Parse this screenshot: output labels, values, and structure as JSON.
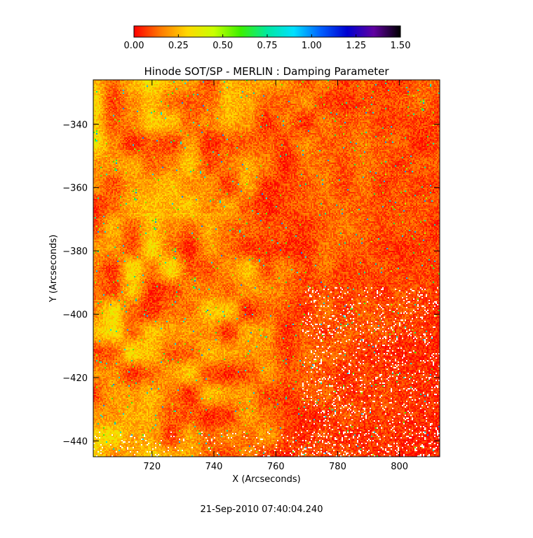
{
  "chart_data": {
    "type": "heatmap",
    "title": "Hinode SOT/SP - MERLIN : Damping Parameter",
    "xlabel": "X (Arcseconds)",
    "ylabel": "Y (Arcseconds)",
    "xlim": [
      701,
      813
    ],
    "ylim": [
      -445,
      -326
    ],
    "x_ticks": [
      720,
      740,
      760,
      780,
      800
    ],
    "y_ticks": [
      -340,
      -360,
      -380,
      -400,
      -420,
      -440
    ],
    "colorbar": {
      "range": [
        0.0,
        1.5
      ],
      "ticks": [
        "0.00",
        "0.25",
        "0.50",
        "0.75",
        "1.00",
        "1.25",
        "1.50"
      ],
      "colors": [
        "#ff0000",
        "#ff7a00",
        "#ffd800",
        "#c8ff00",
        "#3cf000",
        "#00e8a0",
        "#00e0ff",
        "#0060ff",
        "#0000d0",
        "#6000a0",
        "#000000"
      ]
    },
    "timestamp": "21-Sep-2010 07:40:04.240"
  }
}
